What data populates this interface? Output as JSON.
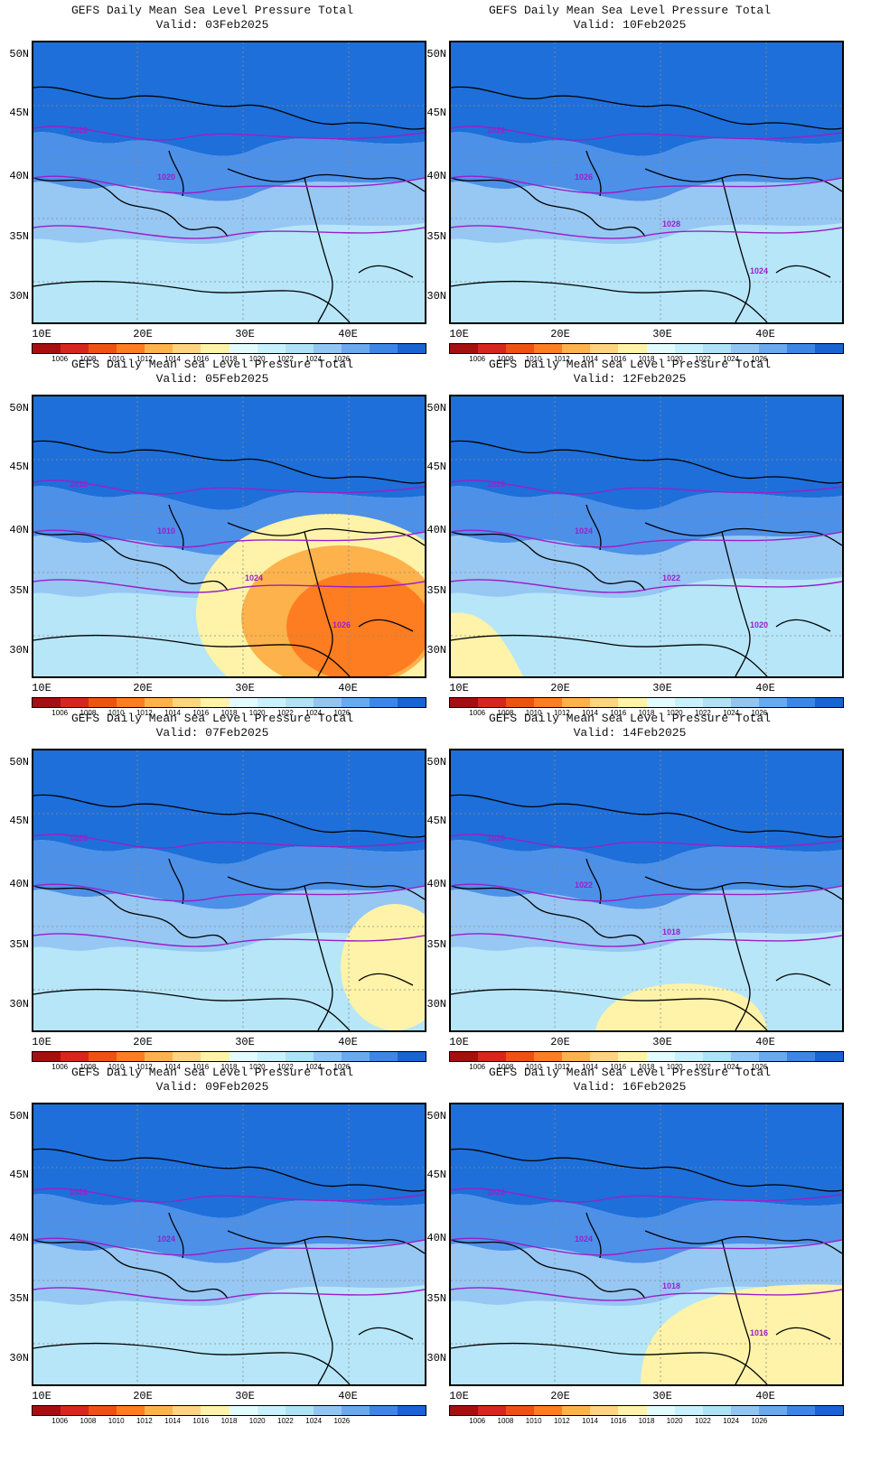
{
  "panels": [
    {
      "title": "GEFS Daily Mean Sea Level Pressure Total",
      "valid": "Valid: 03Feb2025",
      "fill_colors": [
        "#1E6FD9",
        "#4C90E8",
        "#97C7F3",
        "#B6E6F8"
      ],
      "isobar_labels": [
        "1022",
        "1020"
      ],
      "highlights": []
    },
    {
      "title": "GEFS Daily Mean Sea Level Pressure Total",
      "valid": "Valid: 10Feb2025",
      "fill_colors": [
        "#1E6FD9",
        "#4C90E8",
        "#97C7F3",
        "#B6E6F8"
      ],
      "isobar_labels": [
        "1022",
        "1026",
        "1028",
        "1024"
      ],
      "highlights": []
    },
    {
      "title": "GEFS Daily Mean Sea Level Pressure Total",
      "valid": "Valid: 05Feb2025",
      "fill_colors": [
        "#1E6FD9",
        "#4C90E8",
        "#97C7F3",
        "#B6E6F8"
      ],
      "isobar_labels": [
        "1012",
        "1010",
        "1024",
        "1026"
      ],
      "highlights": [
        "low"
      ]
    },
    {
      "title": "GEFS Daily Mean Sea Level Pressure Total",
      "valid": "Valid: 12Feb2025",
      "fill_colors": [
        "#1E6FD9",
        "#4C90E8",
        "#97C7F3",
        "#B6E6F8"
      ],
      "isobar_labels": [
        "1026",
        "1024",
        "1022",
        "1020"
      ],
      "highlights": [
        "yellow-sw"
      ]
    },
    {
      "title": "GEFS Daily Mean Sea Level Pressure Total",
      "valid": "Valid: 07Feb2025",
      "fill_colors": [
        "#1E6FD9",
        "#4C90E8",
        "#97C7F3",
        "#B6E6F8"
      ],
      "isobar_labels": [
        "1026"
      ],
      "highlights": [
        "yellow-se"
      ]
    },
    {
      "title": "GEFS Daily Mean Sea Level Pressure Total",
      "valid": "Valid: 14Feb2025",
      "fill_colors": [
        "#1E6FD9",
        "#4C90E8",
        "#97C7F3",
        "#B6E6F8"
      ],
      "isobar_labels": [
        "1026",
        "1022",
        "1018"
      ],
      "highlights": [
        "yellow-s"
      ]
    },
    {
      "title": "GEFS Daily Mean Sea Level Pressure Total",
      "valid": "Valid: 09Feb2025",
      "fill_colors": [
        "#1E6FD9",
        "#4C90E8",
        "#97C7F3",
        "#B6E6F8"
      ],
      "isobar_labels": [
        "1026",
        "1024"
      ],
      "highlights": []
    },
    {
      "title": "GEFS Daily Mean Sea Level Pressure Total",
      "valid": "Valid: 16Feb2025",
      "fill_colors": [
        "#1E6FD9",
        "#4C90E8",
        "#97C7F3",
        "#B6E6F8"
      ],
      "isobar_labels": [
        "1026",
        "1024",
        "1018",
        "1016"
      ],
      "highlights": [
        "yellow-se-big"
      ]
    }
  ],
  "lat_labels": [
    "50N",
    "45N",
    "40N",
    "35N",
    "30N"
  ],
  "lon_labels": [
    "10E",
    "20E",
    "30E",
    "40E"
  ],
  "colorbar": {
    "colors": [
      "#A50F0F",
      "#D7261E",
      "#EE5212",
      "#FE7D20",
      "#FDB24B",
      "#FED480",
      "#FEF3A8",
      "#E2FCFE",
      "#C7F1FC",
      "#AEE2F7",
      "#92C6F2",
      "#69A9EE",
      "#3D86E6",
      "#1A63D3"
    ],
    "labels": [
      "1006",
      "1008",
      "1010",
      "1012",
      "1014",
      "1016",
      "1018",
      "1020",
      "1022",
      "1024",
      "1026"
    ]
  },
  "isobar_color": "#9B1FC8"
}
